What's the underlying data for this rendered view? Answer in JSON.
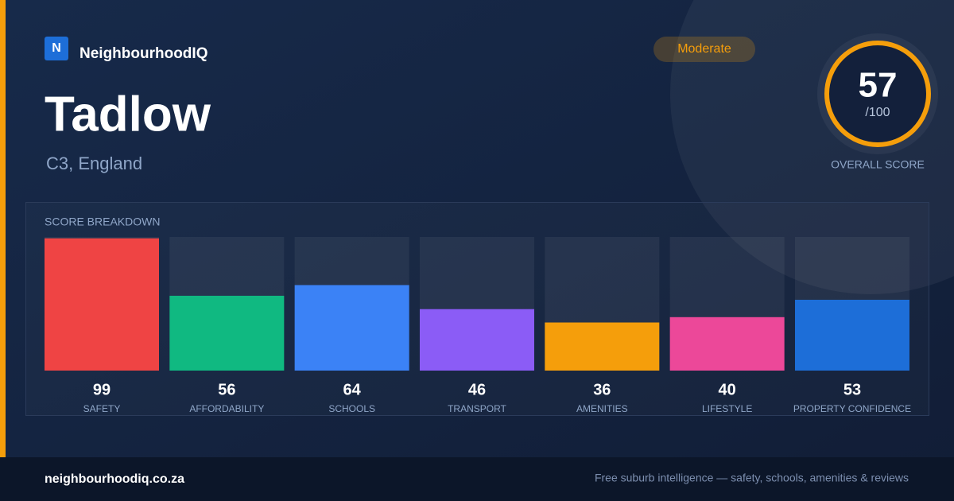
{
  "brand": "NeighbourhoodIQ",
  "brand_initial": "N",
  "badge": "Moderate",
  "place": {
    "name": "Tadlow",
    "location": "C3, England"
  },
  "overall": {
    "score": 57,
    "out_of": "/100",
    "label": "OVERALL SCORE"
  },
  "chart_data": {
    "type": "bar",
    "title": "SCORE BREAKDOWN",
    "categories": [
      "SAFETY",
      "AFFORDABILITY",
      "SCHOOLS",
      "TRANSPORT",
      "AMENITIES",
      "LIFESTYLE",
      "PROPERTY CONFIDENCE"
    ],
    "values": [
      99,
      56,
      64,
      46,
      36,
      40,
      53
    ],
    "colors": [
      "#ef4444",
      "#10b981",
      "#3b82f6",
      "#8b5cf6",
      "#f59e0b",
      "#ec4899",
      "#1d6ed8"
    ],
    "ylim": [
      0,
      100
    ]
  },
  "footer": {
    "domain": "neighbourhoodiq.co.za",
    "tagline": "Free suburb intelligence — safety, schools, amenities & reviews"
  }
}
